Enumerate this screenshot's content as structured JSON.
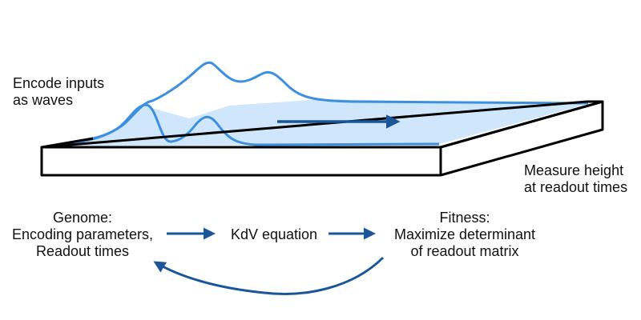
{
  "labels": {
    "encode": [
      "Encode inputs",
      "as waves"
    ],
    "measure": [
      "Measure height",
      "at readout times"
    ],
    "genome": [
      "Genome:",
      "Encoding parameters,",
      "Readout times"
    ],
    "kdv": "KdV equation",
    "fitness": [
      "Fitness:",
      "Maximize determinant",
      "of readout matrix"
    ]
  },
  "colors": {
    "water_fill": "#cfe6fb",
    "wave_stroke": "#3d8fe0",
    "arrow": "#1a5699",
    "tank_stroke": "#000000",
    "tank_face": "#ffffff"
  }
}
